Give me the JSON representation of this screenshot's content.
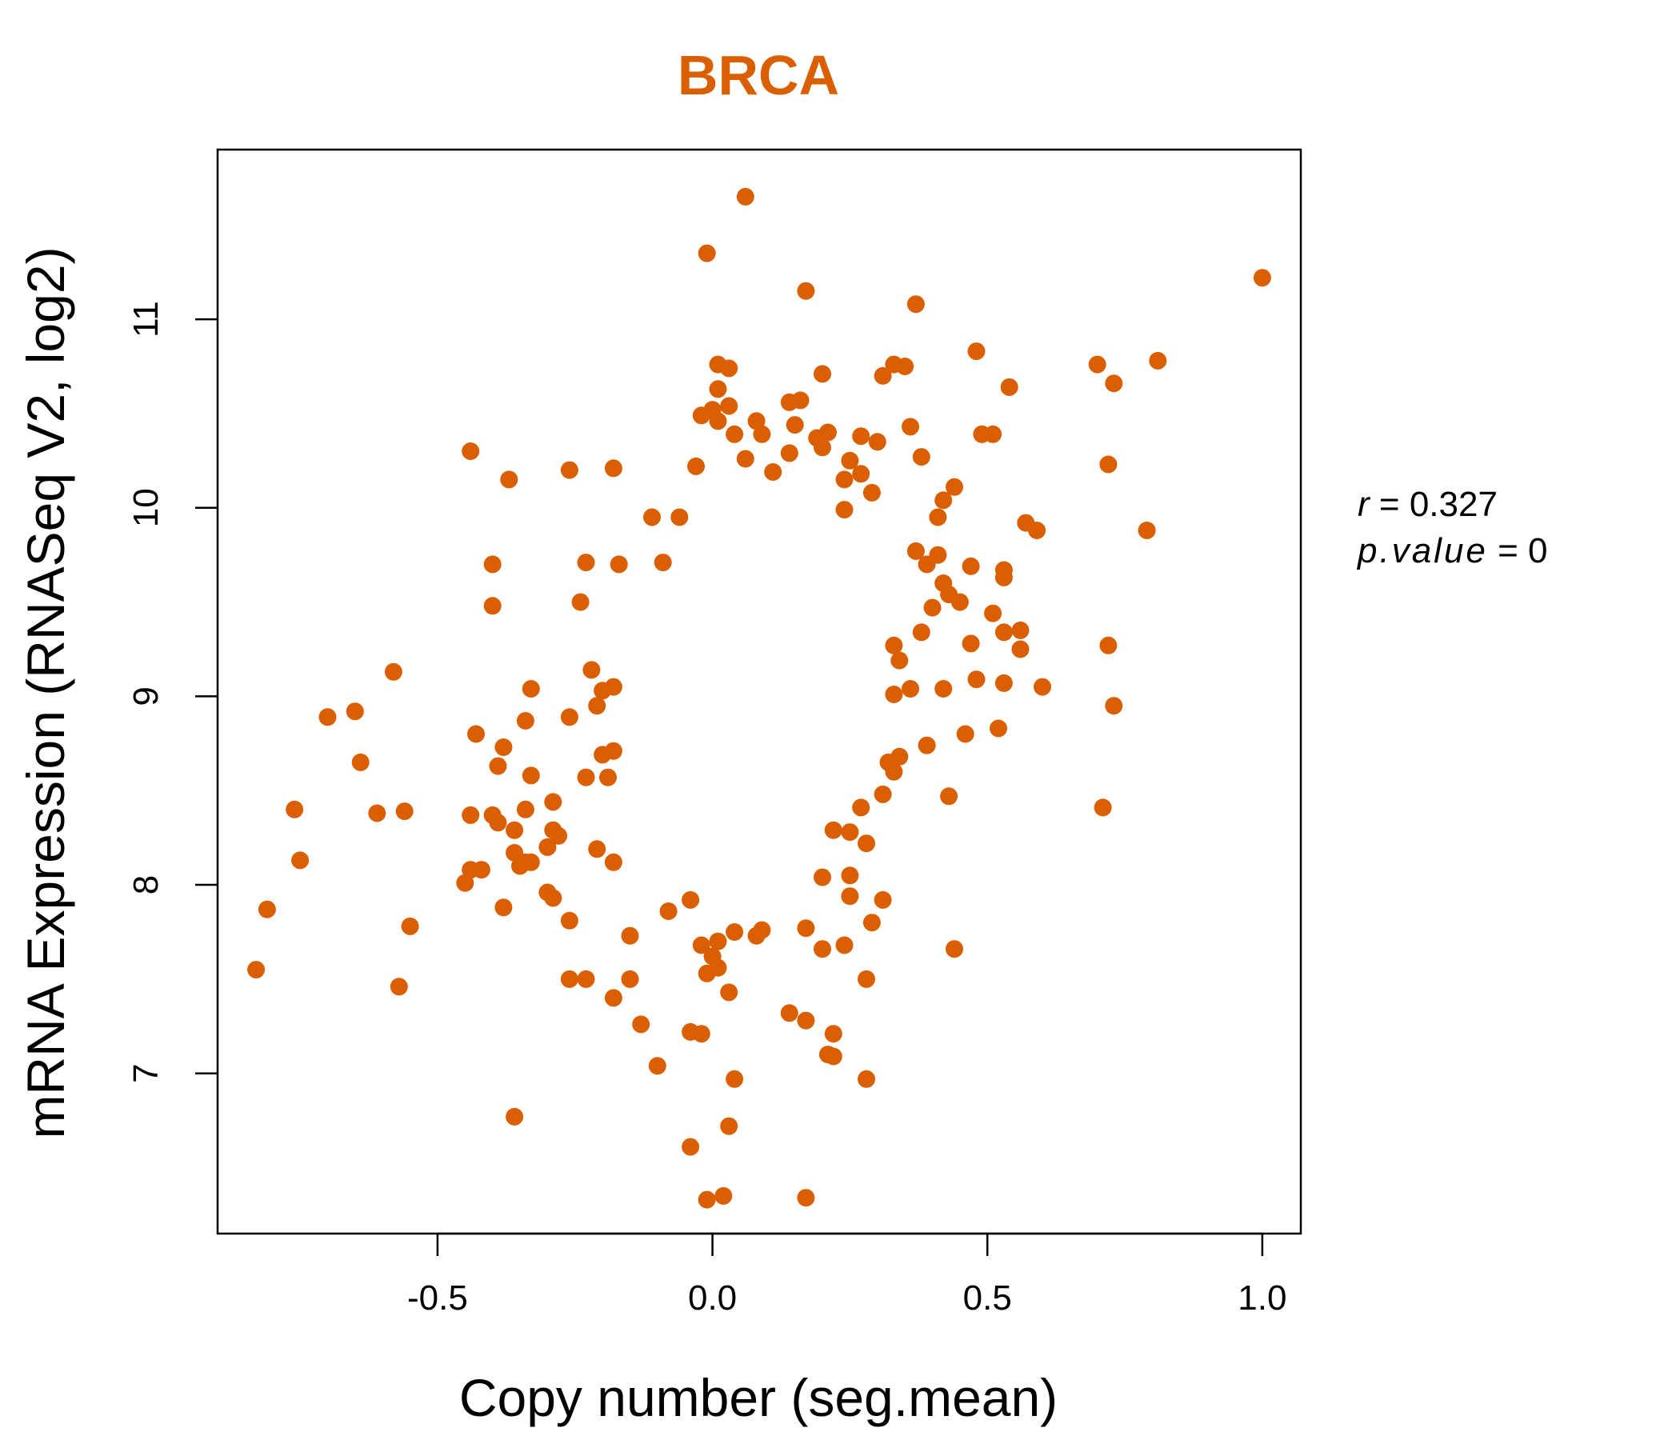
{
  "chart_data": {
    "type": "scatter",
    "title": "BRCA",
    "xlabel": "Copy number (seg.mean)",
    "ylabel": "mRNA Expression (RNASeq V2, log2)",
    "xlim": [
      -0.9,
      1.07
    ],
    "ylim": [
      6.15,
      11.9
    ],
    "xticks": [
      -0.5,
      0.0,
      0.5,
      1.0
    ],
    "xtick_labels": [
      "-0.5",
      "0.0",
      "0.5",
      "1.0"
    ],
    "yticks": [
      7,
      8,
      9,
      10,
      11
    ],
    "ytick_labels": [
      "7",
      "8",
      "9",
      "10",
      "11"
    ],
    "grid": false,
    "legend": "none",
    "colors": {
      "title": "#d95f02",
      "points": "#d95f02"
    },
    "stats": {
      "r_label": "r",
      "r_value": "0.327",
      "p_label": "p.value",
      "p_value": "0"
    },
    "points": [
      [
        0.06,
        11.65
      ],
      [
        -0.01,
        11.35
      ],
      [
        0.17,
        11.15
      ],
      [
        0.37,
        11.08
      ],
      [
        1.0,
        11.22
      ],
      [
        0.81,
        10.78
      ],
      [
        0.7,
        10.76
      ],
      [
        0.73,
        10.66
      ],
      [
        0.48,
        10.83
      ],
      [
        0.54,
        10.64
      ],
      [
        0.49,
        10.39
      ],
      [
        0.51,
        10.39
      ],
      [
        0.72,
        10.23
      ],
      [
        0.79,
        9.88
      ],
      [
        0.57,
        9.92
      ],
      [
        0.59,
        9.88
      ],
      [
        0.47,
        9.69
      ],
      [
        0.53,
        9.67
      ],
      [
        0.53,
        9.63
      ],
      [
        0.51,
        9.44
      ],
      [
        0.56,
        9.35
      ],
      [
        0.53,
        9.34
      ],
      [
        0.56,
        9.25
      ],
      [
        0.72,
        9.27
      ],
      [
        0.47,
        9.28
      ],
      [
        0.48,
        9.09
      ],
      [
        0.53,
        9.07
      ],
      [
        0.6,
        9.05
      ],
      [
        0.73,
        8.95
      ],
      [
        0.52,
        8.83
      ],
      [
        0.46,
        8.8
      ],
      [
        0.71,
        8.41
      ],
      [
        0.44,
        7.66
      ],
      [
        0.43,
        8.47
      ],
      [
        0.39,
        8.74
      ],
      [
        0.42,
        9.04
      ],
      [
        0.38,
        9.34
      ],
      [
        0.4,
        9.47
      ],
      [
        0.45,
        9.5
      ],
      [
        0.43,
        9.54
      ],
      [
        0.42,
        9.6
      ],
      [
        0.41,
        9.75
      ],
      [
        0.39,
        9.7
      ],
      [
        0.37,
        9.77
      ],
      [
        0.42,
        10.04
      ],
      [
        0.44,
        10.11
      ],
      [
        0.41,
        9.95
      ],
      [
        0.38,
        10.27
      ],
      [
        0.36,
        10.43
      ],
      [
        0.35,
        10.75
      ],
      [
        0.33,
        10.76
      ],
      [
        0.31,
        10.7
      ],
      [
        0.3,
        10.35
      ],
      [
        0.27,
        10.38
      ],
      [
        0.25,
        10.25
      ],
      [
        -0.44,
        10.3
      ],
      [
        -0.37,
        10.15
      ],
      [
        -0.26,
        10.2
      ],
      [
        -0.18,
        10.21
      ],
      [
        -0.4,
        9.7
      ],
      [
        -0.4,
        9.48
      ],
      [
        -0.23,
        9.71
      ],
      [
        -0.24,
        9.5
      ],
      [
        -0.17,
        9.7
      ],
      [
        -0.09,
        9.71
      ],
      [
        -0.58,
        9.13
      ],
      [
        -0.7,
        8.89
      ],
      [
        -0.65,
        8.92
      ],
      [
        -0.64,
        8.65
      ],
      [
        -0.61,
        8.38
      ],
      [
        -0.56,
        8.39
      ],
      [
        -0.76,
        8.4
      ],
      [
        -0.75,
        8.13
      ],
      [
        -0.81,
        7.87
      ],
      [
        -0.83,
        7.55
      ],
      [
        -0.57,
        7.46
      ],
      [
        -0.55,
        7.78
      ],
      [
        -0.33,
        9.04
      ],
      [
        -0.34,
        8.87
      ],
      [
        -0.43,
        8.8
      ],
      [
        -0.38,
        8.73
      ],
      [
        -0.39,
        8.63
      ],
      [
        -0.33,
        8.58
      ],
      [
        -0.34,
        8.4
      ],
      [
        -0.44,
        8.37
      ],
      [
        -0.4,
        8.37
      ],
      [
        -0.39,
        8.33
      ],
      [
        -0.29,
        8.44
      ],
      [
        -0.36,
        8.29
      ],
      [
        -0.36,
        8.17
      ],
      [
        -0.34,
        8.12
      ],
      [
        -0.35,
        8.1
      ],
      [
        -0.33,
        8.12
      ],
      [
        -0.44,
        8.08
      ],
      [
        -0.42,
        8.08
      ],
      [
        -0.45,
        8.01
      ],
      [
        -0.3,
        7.96
      ],
      [
        -0.38,
        7.88
      ],
      [
        -0.29,
        7.93
      ],
      [
        -0.26,
        7.81
      ],
      [
        -0.3,
        8.2
      ],
      [
        -0.28,
        8.26
      ],
      [
        -0.29,
        8.29
      ],
      [
        -0.36,
        6.77
      ],
      [
        -0.26,
        8.89
      ],
      [
        -0.21,
        8.95
      ],
      [
        -0.22,
        9.14
      ],
      [
        -0.2,
        9.03
      ],
      [
        -0.18,
        9.05
      ],
      [
        -0.2,
        8.69
      ],
      [
        -0.18,
        8.71
      ],
      [
        -0.23,
        8.57
      ],
      [
        -0.19,
        8.57
      ],
      [
        -0.21,
        8.19
      ],
      [
        -0.18,
        8.12
      ],
      [
        -0.26,
        7.5
      ],
      [
        -0.23,
        7.5
      ],
      [
        -0.18,
        7.4
      ],
      [
        -0.15,
        7.5
      ],
      [
        -0.15,
        7.73
      ],
      [
        -0.13,
        7.26
      ],
      [
        -0.1,
        7.04
      ],
      [
        -0.04,
        7.22
      ],
      [
        -0.02,
        7.21
      ],
      [
        -0.04,
        6.61
      ],
      [
        -0.01,
        6.33
      ],
      [
        0.02,
        6.35
      ],
      [
        0.03,
        6.72
      ],
      [
        0.04,
        6.97
      ],
      [
        0.03,
        7.43
      ],
      [
        0.01,
        7.7
      ],
      [
        0.04,
        7.75
      ],
      [
        0.0,
        7.62
      ],
      [
        -0.01,
        7.53
      ],
      [
        0.01,
        7.56
      ],
      [
        -0.04,
        7.92
      ],
      [
        -0.08,
        7.86
      ],
      [
        -0.02,
        7.68
      ],
      [
        0.08,
        7.73
      ],
      [
        0.09,
        7.76
      ],
      [
        0.14,
        7.32
      ],
      [
        0.17,
        7.28
      ],
      [
        0.22,
        7.21
      ],
      [
        0.21,
        7.1
      ],
      [
        0.22,
        7.09
      ],
      [
        0.28,
        6.97
      ],
      [
        0.17,
        6.34
      ],
      [
        0.17,
        7.77
      ],
      [
        0.2,
        7.66
      ],
      [
        0.24,
        7.68
      ],
      [
        0.28,
        7.5
      ],
      [
        0.29,
        7.8
      ],
      [
        0.31,
        7.92
      ],
      [
        0.25,
        7.94
      ],
      [
        0.25,
        8.05
      ],
      [
        0.2,
        8.04
      ],
      [
        0.28,
        8.22
      ],
      [
        0.25,
        8.28
      ],
      [
        0.22,
        8.29
      ],
      [
        0.27,
        8.41
      ],
      [
        0.31,
        8.48
      ],
      [
        0.33,
        8.6
      ],
      [
        0.34,
        8.68
      ],
      [
        0.32,
        8.65
      ],
      [
        0.36,
        9.04
      ],
      [
        0.33,
        9.01
      ],
      [
        0.34,
        9.19
      ],
      [
        0.33,
        9.27
      ],
      [
        -0.11,
        9.95
      ],
      [
        -0.06,
        9.95
      ],
      [
        -0.03,
        10.22
      ],
      [
        -0.02,
        10.49
      ],
      [
        0.0,
        10.52
      ],
      [
        0.01,
        10.46
      ],
      [
        0.01,
        10.63
      ],
      [
        0.01,
        10.76
      ],
      [
        0.03,
        10.74
      ],
      [
        0.03,
        10.54
      ],
      [
        0.04,
        10.39
      ],
      [
        0.06,
        10.26
      ],
      [
        0.08,
        10.46
      ],
      [
        0.09,
        10.39
      ],
      [
        0.11,
        10.19
      ],
      [
        0.14,
        10.56
      ],
      [
        0.15,
        10.44
      ],
      [
        0.16,
        10.57
      ],
      [
        0.14,
        10.29
      ],
      [
        0.2,
        10.71
      ],
      [
        0.19,
        10.37
      ],
      [
        0.2,
        10.32
      ],
      [
        0.21,
        10.4
      ],
      [
        0.24,
        10.15
      ],
      [
        0.27,
        10.18
      ],
      [
        0.29,
        10.08
      ],
      [
        0.24,
        9.99
      ]
    ]
  }
}
